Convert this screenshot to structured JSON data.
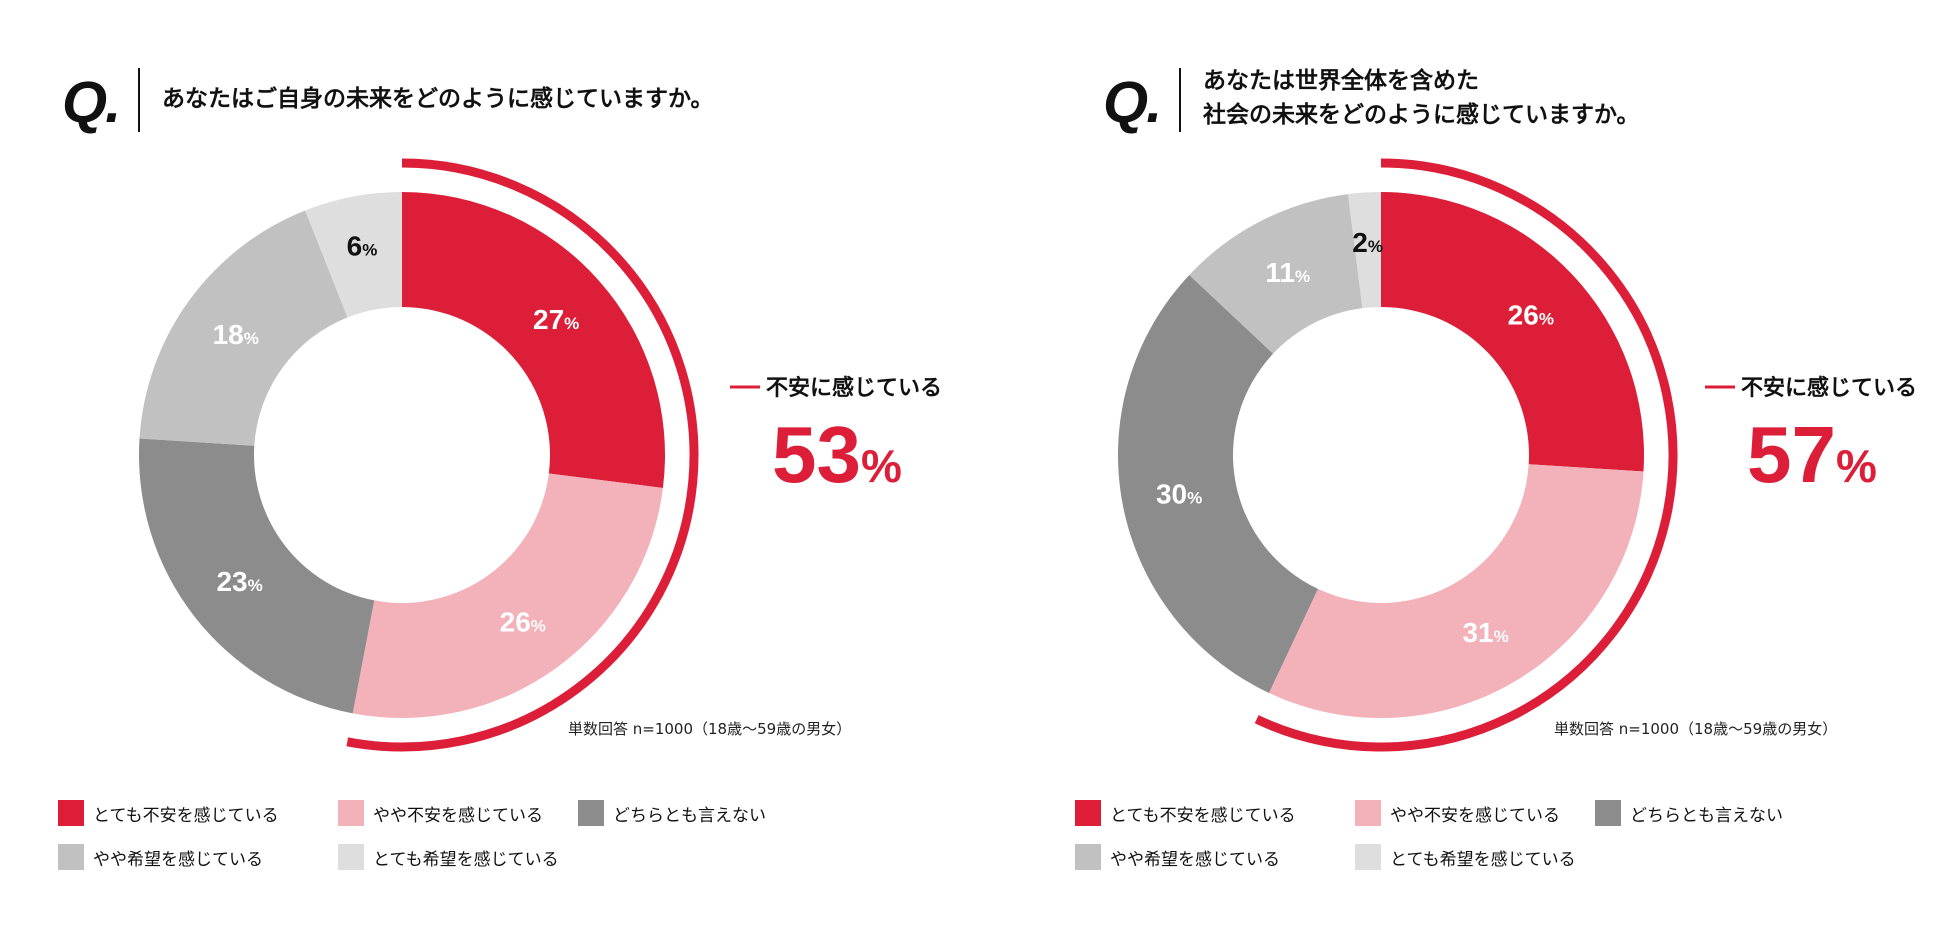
{
  "legend": [
    {
      "label": "とても不安を感じている",
      "color": "#dc1e38"
    },
    {
      "label": "やや不安を感じている",
      "color": "#f3b1b9"
    },
    {
      "label": "どちらとも言えない",
      "color": "#8c8c8c"
    },
    {
      "label": "やや希望を感じている",
      "color": "#c1c1c1"
    },
    {
      "label": "とても希望を感じている",
      "color": "#dedede"
    }
  ],
  "panels": [
    {
      "q_mark": "Q.",
      "question": "あなたはご自身の未来をどのように感じていますか。",
      "callout_label": "不安に感じている",
      "callout_value": "53",
      "callout_unit": "%",
      "note": "単数回答 n=1000（18歳～59歳の男女）"
    },
    {
      "q_mark": "Q.",
      "question": "あなたは世界全体を含めた\n社会の未来をどのように感じていますか。",
      "callout_label": "不安に感じている",
      "callout_value": "57",
      "callout_unit": "%",
      "note": "単数回答 n=1000（18歳～59歳の男女）"
    }
  ],
  "chart_data": [
    {
      "type": "pie",
      "donut": true,
      "unit": "%",
      "categories": [
        "とても不安を感じている",
        "やや不安を感じている",
        "どちらとも言えない",
        "やや希望を感じている",
        "とても希望を感じている"
      ],
      "values": [
        27,
        26,
        23,
        18,
        6
      ],
      "colors": [
        "#dc1e38",
        "#f3b1b9",
        "#8c8c8c",
        "#c1c1c1",
        "#dedede"
      ],
      "highlight": {
        "label": "不安に感じている",
        "value": 53,
        "color": "#dc1e38"
      }
    },
    {
      "type": "pie",
      "donut": true,
      "unit": "%",
      "categories": [
        "とても不安を感じている",
        "やや不安を感じている",
        "どちらとも言えない",
        "やや希望を感じている",
        "とても希望を感じている"
      ],
      "values": [
        26,
        31,
        30,
        11,
        2
      ],
      "colors": [
        "#dc1e38",
        "#f3b1b9",
        "#8c8c8c",
        "#c1c1c1",
        "#dedede"
      ],
      "highlight": {
        "label": "不安に感じている",
        "value": 57,
        "color": "#dc1e38"
      }
    }
  ]
}
